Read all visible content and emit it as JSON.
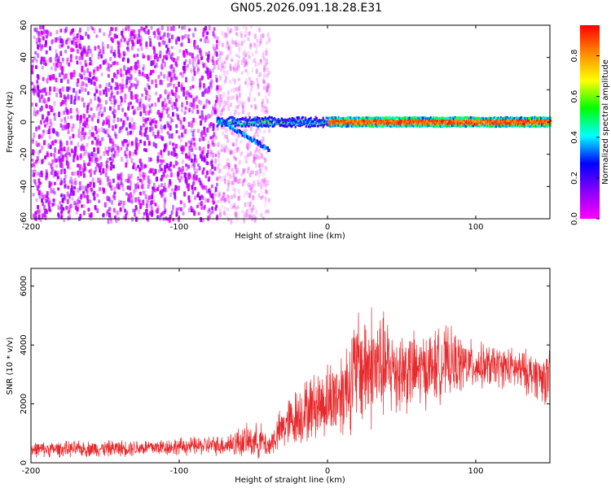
{
  "title": "GN05.2026.091.18.28.E31",
  "chart_data": [
    {
      "type": "heatmap",
      "title": "GN05.2026.091.18.28.E31",
      "xlabel": "Height of straight line (km)",
      "ylabel": "Frequency (Hz)",
      "xlim": [
        -200,
        150
      ],
      "ylim": [
        -60,
        60
      ],
      "x_ticks": [
        -200,
        -100,
        0,
        100
      ],
      "y_ticks": [
        -60,
        -40,
        -20,
        0,
        20,
        40,
        60
      ],
      "colorbar": {
        "label": "Normalized spectral amplitude",
        "range": [
          0,
          0.95
        ],
        "ticks": [
          0.0,
          0.2,
          0.4,
          0.6,
          0.8
        ],
        "colormap": [
          "#ff00ff",
          "#8800ff",
          "#0000ff",
          "#00ffff",
          "#00ff00",
          "#ffff00",
          "#ff8800",
          "#ff0000"
        ]
      },
      "features": {
        "noise_region_x": [
          -200,
          -40
        ],
        "noise_region_amplitude": 0.05,
        "signal_band_frequency_hz": 0,
        "signal_band_start_x": -75,
        "signal_band_amplitude_high_x": [
          0,
          150
        ],
        "branch_x": [
          -75,
          -40
        ],
        "branch_frequency_hz": [
          2,
          -17
        ]
      }
    },
    {
      "type": "line",
      "xlabel": "Height of straight line (km)",
      "ylabel": "SNR (10 * v/v)",
      "xlim": [
        -200,
        150
      ],
      "ylim": [
        0,
        6600
      ],
      "x_ticks": [
        -200,
        -100,
        0,
        100
      ],
      "y_ticks": [
        0,
        2000,
        4000,
        6000
      ],
      "color": "#e8292b",
      "envelope": {
        "x": [
          -200,
          -150,
          -100,
          -70,
          -60,
          -45,
          -40,
          -30,
          -20,
          -10,
          0,
          10,
          20,
          30,
          40,
          60,
          80,
          100,
          120,
          140,
          150
        ],
        "mean": [
          450,
          480,
          550,
          600,
          700,
          750,
          550,
          1200,
          1600,
          1900,
          2100,
          2400,
          3200,
          3300,
          3200,
          3100,
          3400,
          3300,
          3250,
          3000,
          2800
        ],
        "amplitude": [
          300,
          320,
          350,
          400,
          600,
          700,
          450,
          900,
          1200,
          1300,
          1500,
          1800,
          2300,
          2500,
          2000,
          1500,
          1400,
          900,
          800,
          900,
          1100
        ]
      }
    }
  ]
}
